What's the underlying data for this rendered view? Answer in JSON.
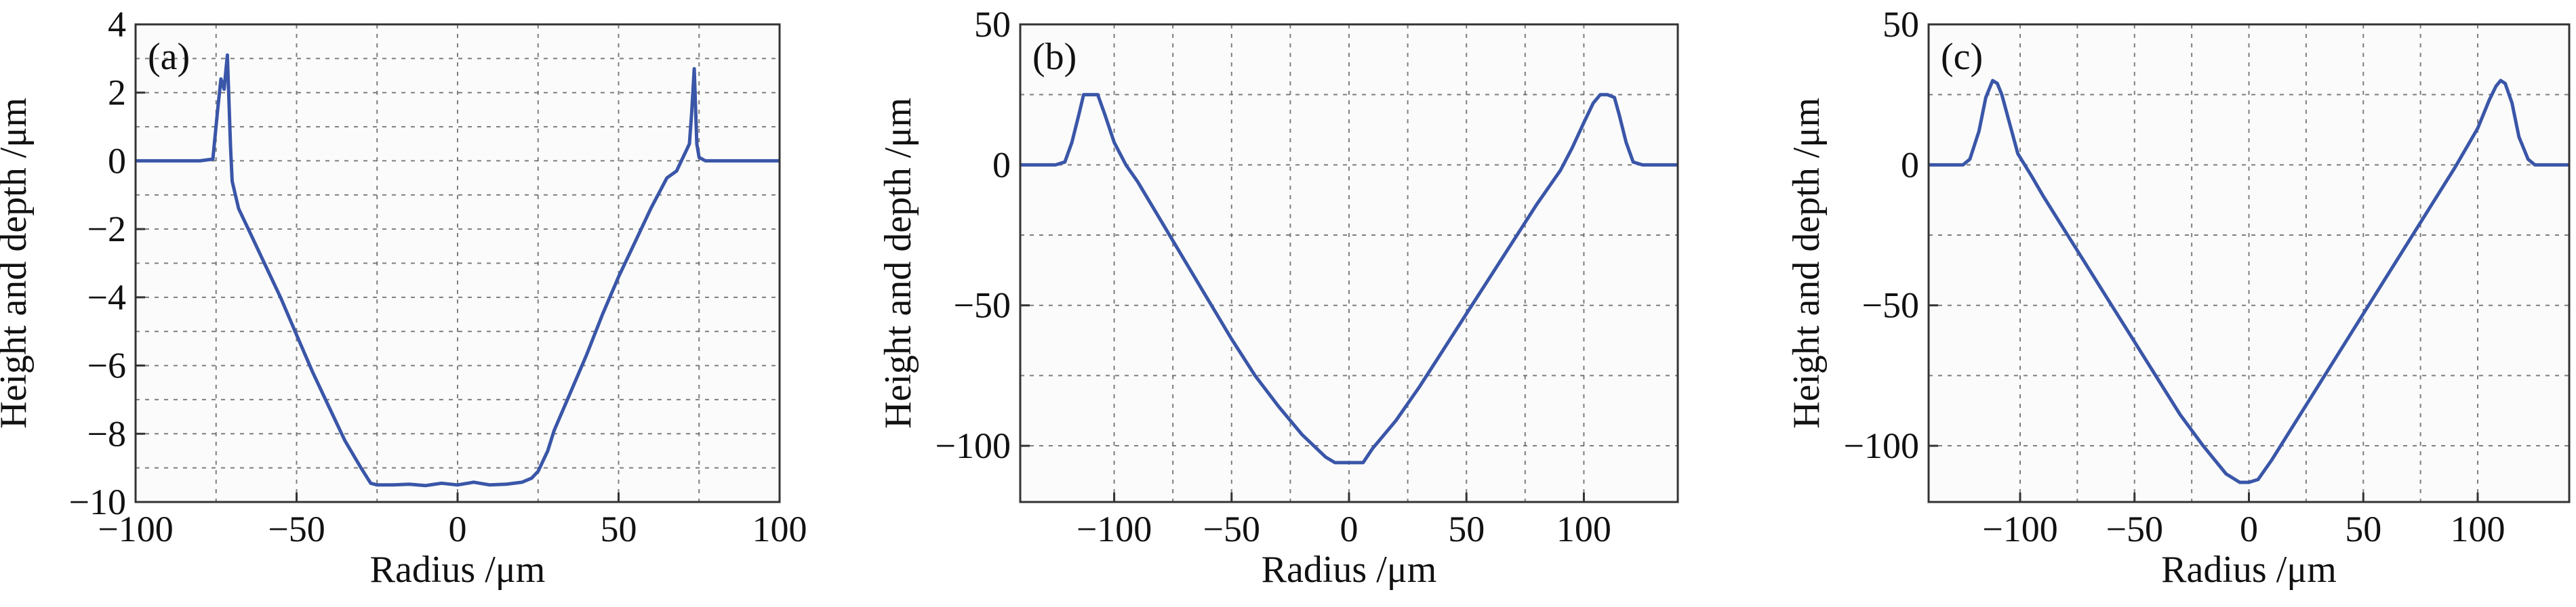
{
  "chart_data": [
    {
      "type": "line",
      "panel_label": "(a)",
      "xlabel": "Radius /μm",
      "ylabel": "Height and depth /μm",
      "xlim": [
        -100,
        100
      ],
      "ylim": [
        -10,
        4
      ],
      "xticks": [
        -100,
        -50,
        0,
        50,
        100
      ],
      "xtick_labels": [
        "−100",
        "−50",
        "0",
        "50",
        "100"
      ],
      "yticks": [
        -10,
        -8,
        -6,
        -4,
        -2,
        0,
        2,
        4
      ],
      "ytick_labels": [
        "−10",
        "−8",
        "−6",
        "−4",
        "−2",
        "0",
        "2",
        "4"
      ],
      "grid": true,
      "series": [
        {
          "color": "#3a56a8",
          "x": [
            -100,
            -90,
            -80,
            -76,
            -74.5,
            -73.5,
            -72.5,
            -71.5,
            -70.5,
            -70,
            -68,
            -65,
            -60,
            -55,
            -50,
            -45,
            -40,
            -35,
            -30,
            -27,
            -25,
            -20,
            -15,
            -10,
            -5,
            0,
            5,
            10,
            15,
            20,
            23,
            25,
            28,
            30,
            35,
            40,
            45,
            50,
            55,
            60,
            65,
            68,
            70,
            71,
            72,
            72.7,
            73.5,
            74.3,
            75,
            77,
            80,
            90,
            100
          ],
          "y": [
            0,
            0,
            0,
            0.05,
            1.5,
            2.4,
            2.1,
            3.1,
            0.4,
            -0.6,
            -1.4,
            -2.0,
            -3.0,
            -4.0,
            -5.1,
            -6.2,
            -7.2,
            -8.2,
            -9.0,
            -9.45,
            -9.5,
            -9.5,
            -9.48,
            -9.52,
            -9.45,
            -9.5,
            -9.42,
            -9.5,
            -9.48,
            -9.42,
            -9.3,
            -9.1,
            -8.5,
            -7.9,
            -6.8,
            -5.7,
            -4.5,
            -3.4,
            -2.4,
            -1.4,
            -0.5,
            -0.3,
            0.1,
            0.3,
            0.5,
            1.4,
            2.7,
            0.5,
            0.1,
            0,
            0,
            0,
            0
          ]
        }
      ]
    },
    {
      "type": "line",
      "panel_label": "(b)",
      "xlabel": "Radius /μm",
      "ylabel": "Height and depth /μm",
      "xlim": [
        -140,
        140
      ],
      "ylim": [
        -120,
        50
      ],
      "xticks": [
        -100,
        -50,
        0,
        50,
        100
      ],
      "xtick_labels": [
        "−100",
        "−50",
        "0",
        "50",
        "100"
      ],
      "yticks": [
        -100,
        -50,
        0,
        50
      ],
      "ytick_labels": [
        "−100",
        "−50",
        "0",
        "50"
      ],
      "grid": true,
      "series": [
        {
          "color": "#3a56a8",
          "x": [
            -140,
            -125,
            -121,
            -118,
            -115,
            -113,
            -110,
            -107,
            -104,
            -100,
            -95,
            -90,
            -80,
            -70,
            -60,
            -50,
            -40,
            -30,
            -20,
            -10,
            -6,
            0,
            6,
            10,
            20,
            30,
            40,
            50,
            60,
            70,
            80,
            90,
            95,
            100,
            104,
            107,
            110,
            113,
            115,
            118,
            121,
            125,
            140
          ],
          "y": [
            0,
            0,
            1,
            8,
            18,
            25,
            25,
            25,
            18,
            8,
            0,
            -6,
            -20,
            -34,
            -48,
            -62,
            -75,
            -86,
            -96,
            -104,
            -106,
            -106,
            -106,
            -101,
            -91,
            -79,
            -66,
            -53,
            -40,
            -27,
            -14,
            -2,
            6,
            15,
            22,
            25,
            25,
            24,
            18,
            8,
            1,
            0,
            0
          ]
        }
      ]
    },
    {
      "type": "line",
      "panel_label": "(c)",
      "xlabel": "Radius /μm",
      "ylabel": "Height and depth /μm",
      "xlim": [
        -140,
        140
      ],
      "ylim": [
        -120,
        50
      ],
      "xticks": [
        -100,
        -50,
        0,
        50,
        100
      ],
      "xtick_labels": [
        "−100",
        "−50",
        "0",
        "50",
        "100"
      ],
      "yticks": [
        -100,
        -50,
        0,
        50
      ],
      "ytick_labels": [
        "−100",
        "−50",
        "0",
        "50"
      ],
      "grid": true,
      "series": [
        {
          "color": "#3a56a8",
          "x": [
            -140,
            -125,
            -122,
            -118,
            -115,
            -112,
            -110,
            -108,
            -105,
            -101,
            -95,
            -90,
            -80,
            -70,
            -60,
            -50,
            -40,
            -30,
            -20,
            -10,
            -4,
            0,
            4,
            10,
            20,
            30,
            40,
            50,
            60,
            70,
            80,
            90,
            100,
            105,
            108,
            110,
            112,
            115,
            118,
            122,
            125,
            140
          ],
          "y": [
            0,
            0,
            2,
            12,
            24,
            30,
            29,
            25,
            16,
            4,
            -4,
            -11,
            -24,
            -37,
            -50,
            -63,
            -76,
            -89,
            -100,
            -110,
            -113,
            -113,
            -112,
            -105,
            -92,
            -79,
            -66,
            -53,
            -40,
            -27,
            -14,
            -1,
            13,
            23,
            28,
            30,
            29,
            22,
            10,
            2,
            0,
            0
          ]
        }
      ]
    }
  ]
}
